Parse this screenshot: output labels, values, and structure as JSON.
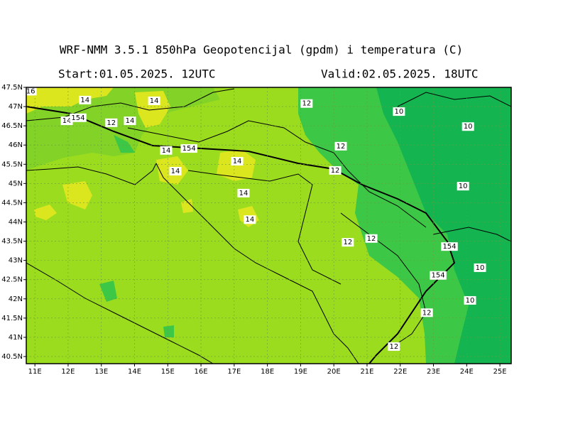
{
  "header": {
    "title": "WRF-NMM 3.5.1  850hPa Geopotencijal (gpdm) i temperatura (C)",
    "start": "Start:01.05.2025.  12UTC",
    "valid": "Valid:02.05.2025.  18UTC"
  },
  "map": {
    "lon_range": [
      10.74,
      25.34
    ],
    "lat_range": [
      40.315,
      47.5
    ],
    "lat_ticks": [
      {
        "value": 47.5,
        "label": "47.5N"
      },
      {
        "value": 47,
        "label": "47N"
      },
      {
        "value": 46.5,
        "label": "46.5N"
      },
      {
        "value": 46,
        "label": "46N"
      },
      {
        "value": 45.5,
        "label": "45.5N"
      },
      {
        "value": 45,
        "label": "45N"
      },
      {
        "value": 44.5,
        "label": "44.5N"
      },
      {
        "value": 44,
        "label": "44N"
      },
      {
        "value": 43.5,
        "label": "43.5N"
      },
      {
        "value": 43,
        "label": "43N"
      },
      {
        "value": 42.5,
        "label": "42.5N"
      },
      {
        "value": 42,
        "label": "42N"
      },
      {
        "value": 41.5,
        "label": "41.5N"
      },
      {
        "value": 41,
        "label": "41N"
      },
      {
        "value": 40.5,
        "label": "40.5N"
      }
    ],
    "lon_ticks": [
      {
        "value": 11,
        "label": "11E"
      },
      {
        "value": 12,
        "label": "12E"
      },
      {
        "value": 13,
        "label": "13E"
      },
      {
        "value": 14,
        "label": "14E"
      },
      {
        "value": 15,
        "label": "15E"
      },
      {
        "value": 16,
        "label": "16E"
      },
      {
        "value": 17,
        "label": "17E"
      },
      {
        "value": 18,
        "label": "18E"
      },
      {
        "value": 19,
        "label": "19E"
      },
      {
        "value": 20,
        "label": "20E"
      },
      {
        "value": 21,
        "label": "21E"
      },
      {
        "value": 22,
        "label": "22E"
      },
      {
        "value": 23,
        "label": "23E"
      },
      {
        "value": 24,
        "label": "24E"
      },
      {
        "value": 25,
        "label": "25E"
      }
    ],
    "contour_labels": [
      {
        "text": "16",
        "lon": 10.87,
        "lat": 47.4
      },
      {
        "text": "14",
        "lon": 12.51,
        "lat": 47.17
      },
      {
        "text": "14",
        "lon": 14.59,
        "lat": 47.15
      },
      {
        "text": "12",
        "lon": 19.18,
        "lat": 47.08
      },
      {
        "text": "10",
        "lon": 21.96,
        "lat": 46.87
      },
      {
        "text": "14",
        "lon": 11.96,
        "lat": 46.63
      },
      {
        "text": "154",
        "lon": 12.3,
        "lat": 46.71
      },
      {
        "text": "12",
        "lon": 13.3,
        "lat": 46.58
      },
      {
        "text": "14",
        "lon": 13.86,
        "lat": 46.63
      },
      {
        "text": "10",
        "lon": 24.04,
        "lat": 46.48
      },
      {
        "text": "14",
        "lon": 14.95,
        "lat": 45.86
      },
      {
        "text": "154",
        "lon": 15.64,
        "lat": 45.91
      },
      {
        "text": "12",
        "lon": 20.21,
        "lat": 45.97
      },
      {
        "text": "14",
        "lon": 17.09,
        "lat": 45.58
      },
      {
        "text": "14",
        "lon": 15.23,
        "lat": 45.32
      },
      {
        "text": "12",
        "lon": 20.04,
        "lat": 45.34
      },
      {
        "text": "10",
        "lon": 23.89,
        "lat": 44.93
      },
      {
        "text": "14",
        "lon": 17.28,
        "lat": 44.75
      },
      {
        "text": "14",
        "lon": 17.47,
        "lat": 44.06
      },
      {
        "text": "12",
        "lon": 20.42,
        "lat": 43.47
      },
      {
        "text": "12",
        "lon": 21.13,
        "lat": 43.57
      },
      {
        "text": "154",
        "lon": 23.48,
        "lat": 43.36
      },
      {
        "text": "10",
        "lon": 24.4,
        "lat": 42.81
      },
      {
        "text": "154",
        "lon": 23.14,
        "lat": 42.61
      },
      {
        "text": "10",
        "lon": 24.1,
        "lat": 41.96
      },
      {
        "text": "12",
        "lon": 22.8,
        "lat": 41.64
      },
      {
        "text": "12",
        "lon": 21.81,
        "lat": 40.76
      }
    ]
  }
}
